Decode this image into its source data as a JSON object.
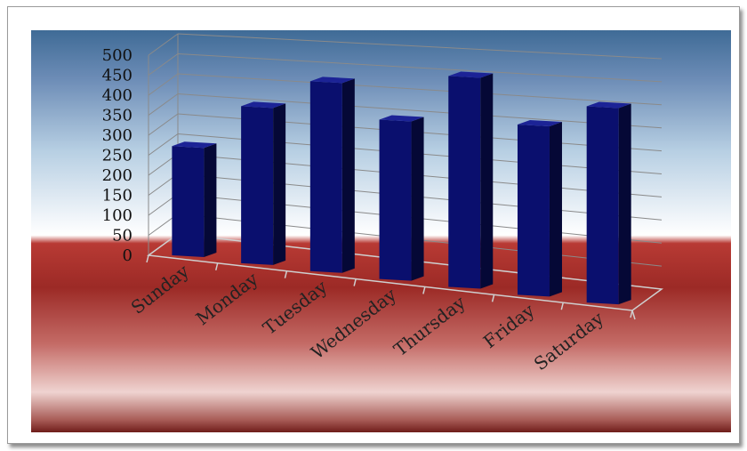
{
  "chart_data": {
    "type": "bar",
    "categories": [
      "Sunday",
      "Monday",
      "Tuesday",
      "Wednesday",
      "Thursday",
      "Friday",
      "Saturday"
    ],
    "values": [
      270,
      380,
      450,
      370,
      480,
      380,
      430
    ],
    "ylim": [
      0,
      500
    ],
    "yticks": [
      "0",
      "50",
      "100",
      "150",
      "200",
      "250",
      "300",
      "350",
      "400",
      "450",
      "500"
    ],
    "grid": true,
    "legend": "none",
    "bar_color": "#0a0f6e",
    "title": "",
    "xlabel": "",
    "ylabel": ""
  },
  "colors": {
    "background_top": "#3f6b96",
    "background_mid": "#ffffff",
    "background_red": "#7a1f1c",
    "grid": "#8a8a8a"
  }
}
